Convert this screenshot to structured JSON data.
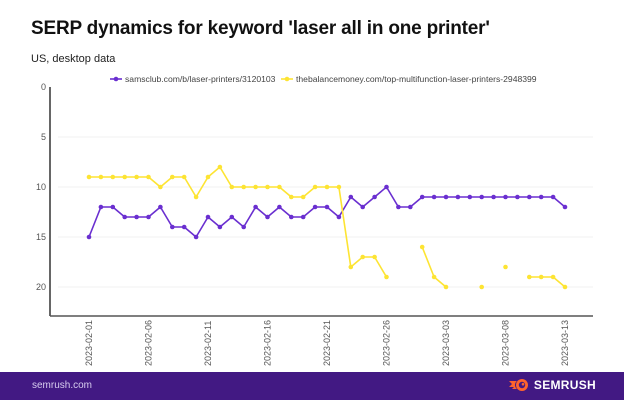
{
  "header": {
    "title": "SERP dynamics for keyword 'laser all in one printer'",
    "subtitle": "US, desktop data"
  },
  "footer": {
    "site": "semrush.com",
    "brand": "SEMRUSH",
    "colors": {
      "background": "#421983",
      "logo_accent": "#ff642d"
    }
  },
  "chart_data": {
    "type": "line",
    "title": "SERP dynamics for keyword 'laser all in one printer'",
    "subtitle": "US, desktop data",
    "xlabel": "",
    "ylabel": "",
    "y_inverted": true,
    "ylim": [
      0,
      22
    ],
    "yticks": [
      0,
      5,
      10,
      15,
      20
    ],
    "grid": true,
    "legend_position": "top",
    "x": [
      "2023-02-01",
      "2023-02-02",
      "2023-02-03",
      "2023-02-04",
      "2023-02-05",
      "2023-02-06",
      "2023-02-07",
      "2023-02-08",
      "2023-02-09",
      "2023-02-10",
      "2023-02-11",
      "2023-02-12",
      "2023-02-13",
      "2023-02-14",
      "2023-02-15",
      "2023-02-16",
      "2023-02-17",
      "2023-02-18",
      "2023-02-19",
      "2023-02-20",
      "2023-02-21",
      "2023-02-22",
      "2023-02-23",
      "2023-02-24",
      "2023-02-25",
      "2023-02-26",
      "2023-02-27",
      "2023-02-28",
      "2023-03-01",
      "2023-03-02",
      "2023-03-03",
      "2023-03-04",
      "2023-03-05",
      "2023-03-06",
      "2023-03-07",
      "2023-03-08",
      "2023-03-09",
      "2023-03-10",
      "2023-03-11",
      "2023-03-12",
      "2023-03-13"
    ],
    "xticks": [
      "2023-02-01",
      "2023-02-06",
      "2023-02-11",
      "2023-02-16",
      "2023-02-21",
      "2023-02-26",
      "2023-03-03",
      "2023-03-08",
      "2023-03-13"
    ],
    "series": [
      {
        "name": "samsclub.com/b/laser-printers/3120103",
        "color": "#6a2fd0",
        "values": [
          15,
          12,
          12,
          13,
          13,
          13,
          12,
          14,
          14,
          15,
          13,
          14,
          13,
          14,
          12,
          13,
          12,
          13,
          13,
          12,
          12,
          13,
          11,
          12,
          11,
          10,
          12,
          12,
          11,
          11,
          11,
          11,
          11,
          11,
          11,
          11,
          11,
          11,
          11,
          11,
          12
        ]
      },
      {
        "name": "thebalancemoney.com/top-multifunction-laser-printers-2948399",
        "color": "#fde433",
        "values": [
          9,
          9,
          9,
          9,
          9,
          9,
          10,
          9,
          9,
          11,
          9,
          8,
          10,
          10,
          10,
          10,
          10,
          11,
          11,
          10,
          10,
          10,
          18,
          17,
          17,
          19,
          null,
          null,
          16,
          19,
          20,
          null,
          null,
          20,
          null,
          18,
          null,
          19,
          19,
          19,
          20
        ]
      }
    ]
  }
}
